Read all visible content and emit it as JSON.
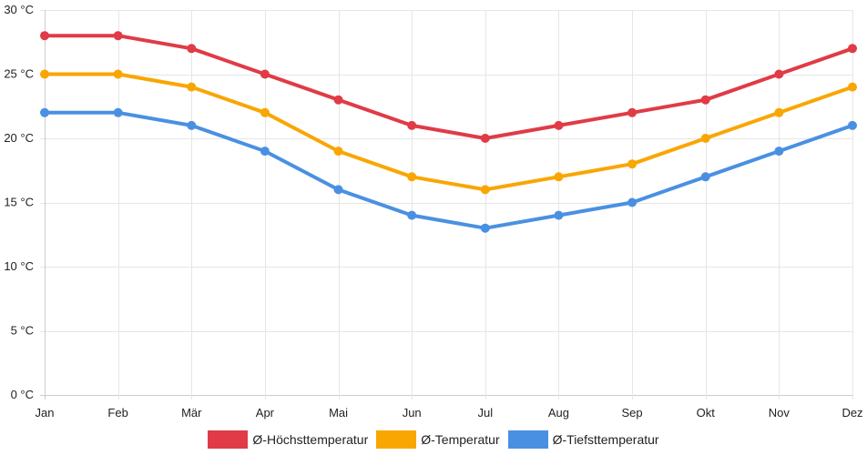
{
  "chart_data": {
    "type": "line",
    "title": "",
    "xlabel": "",
    "ylabel": "",
    "categories": [
      "Jan",
      "Feb",
      "Mär",
      "Apr",
      "Mai",
      "Jun",
      "Jul",
      "Aug",
      "Sep",
      "Okt",
      "Nov",
      "Dez"
    ],
    "ylim": [
      0,
      30
    ],
    "yticks": [
      0,
      5,
      10,
      15,
      20,
      25,
      30
    ],
    "y_unit": " °C",
    "grid": true,
    "legend_position": "bottom",
    "series": [
      {
        "name": "Ø-Höchsttemperatur",
        "color": "#e03b46",
        "values": [
          28,
          28,
          27,
          25,
          23,
          21,
          20,
          21,
          22,
          23,
          25,
          27
        ]
      },
      {
        "name": "Ø-Temperatur",
        "color": "#f9a602",
        "values": [
          25,
          25,
          24,
          22,
          19,
          17,
          16,
          17,
          18,
          20,
          22,
          24
        ]
      },
      {
        "name": "Ø-Tiefsttemperatur",
        "color": "#4a90e2",
        "values": [
          22,
          22,
          21,
          19,
          16,
          14,
          13,
          14,
          15,
          17,
          19,
          21
        ]
      }
    ]
  }
}
